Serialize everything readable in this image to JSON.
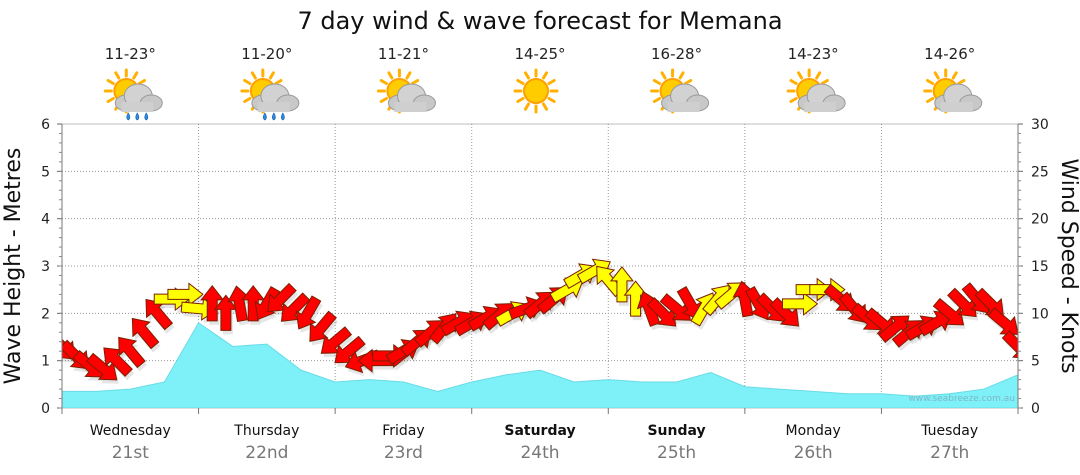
{
  "page": {
    "title": "7 day wind & wave forecast for Memana",
    "watermark": "www.seabreeze.com.au"
  },
  "chart_data": {
    "type": "area",
    "title": "7 day wind & wave forecast for Memana",
    "ylabel_left": "Wave Height - Metres",
    "ylabel_right": "Wind Speed - Knots",
    "left_axis": {
      "ticks": [
        "0",
        "1",
        "2",
        "3",
        "4",
        "5",
        "6"
      ],
      "range": [
        0,
        6
      ]
    },
    "right_axis": {
      "ticks": [
        "0",
        "5",
        "10",
        "15",
        "20",
        "25",
        "30"
      ],
      "range": [
        0,
        30
      ]
    },
    "days": [
      {
        "name": "Wednesday",
        "date": "21st",
        "temp": "11-23°",
        "weather": "partly-cloudy-showers-icon",
        "weekend": false
      },
      {
        "name": "Thursday",
        "date": "22nd",
        "temp": "11-20°",
        "weather": "partly-cloudy-showers-icon",
        "weekend": false
      },
      {
        "name": "Friday",
        "date": "23rd",
        "temp": "11-21°",
        "weather": "partly-cloudy-icon",
        "weekend": false
      },
      {
        "name": "Saturday",
        "date": "24th",
        "temp": "14-25°",
        "weather": "sunny-icon",
        "weekend": true
      },
      {
        "name": "Sunday",
        "date": "25th",
        "temp": "16-28°",
        "weather": "partly-cloudy-icon",
        "weekend": true
      },
      {
        "name": "Monday",
        "date": "26th",
        "temp": "14-23°",
        "weather": "partly-cloudy-icon",
        "weekend": false
      },
      {
        "name": "Tuesday",
        "date": "27th",
        "temp": "14-26°",
        "weather": "partly-cloudy-icon",
        "weekend": false
      }
    ],
    "wave_series": {
      "name": "Wave Height",
      "color": "#7ef0f8",
      "x_day": [
        0,
        0.25,
        0.5,
        0.75,
        1,
        1.25,
        1.5,
        1.75,
        2,
        2.25,
        2.5,
        2.75,
        3,
        3.25,
        3.5,
        3.75,
        4,
        4.25,
        4.5,
        4.75,
        5,
        5.25,
        5.5,
        5.75,
        6,
        6.25,
        6.5,
        6.75,
        7
      ],
      "values": [
        0.35,
        0.35,
        0.4,
        0.55,
        1.8,
        1.3,
        1.35,
        0.8,
        0.55,
        0.6,
        0.55,
        0.35,
        0.55,
        0.7,
        0.8,
        0.55,
        0.6,
        0.55,
        0.55,
        0.75,
        0.45,
        0.4,
        0.35,
        0.3,
        0.3,
        0.25,
        0.3,
        0.4,
        0.7
      ]
    },
    "wind_series": {
      "name": "Wind Speed",
      "x_day": [
        0,
        0.1,
        0.2,
        0.3,
        0.4,
        0.5,
        0.6,
        0.7,
        0.8,
        0.9,
        1,
        1.1,
        1.2,
        1.3,
        1.4,
        1.5,
        1.6,
        1.7,
        1.8,
        1.9,
        2,
        2.1,
        2.2,
        2.3,
        2.4,
        2.5,
        2.6,
        2.7,
        2.8,
        2.9,
        3,
        3.1,
        3.2,
        3.3,
        3.4,
        3.5,
        3.6,
        3.7,
        3.8,
        3.9,
        4,
        4.1,
        4.2,
        4.3,
        4.4,
        4.5,
        4.6,
        4.7,
        4.8,
        4.9,
        5,
        5.1,
        5.2,
        5.3,
        5.4,
        5.5,
        5.6,
        5.7,
        5.8,
        5.9,
        6,
        6.1,
        6.2,
        6.3,
        6.4,
        6.5,
        6.6,
        6.7,
        6.8,
        6.9,
        7
      ],
      "knots": [
        6.5,
        5.5,
        4.5,
        4.2,
        5,
        6,
        8,
        10,
        11.5,
        12,
        10.5,
        11,
        10,
        11,
        11,
        11,
        11.5,
        10.5,
        10,
        8.5,
        7,
        6,
        5,
        5,
        5.5,
        6,
        7,
        8,
        8.5,
        9,
        9,
        9.5,
        9.8,
        10,
        10.5,
        11,
        11.5,
        12.5,
        14,
        14.5,
        13.5,
        13,
        11.5,
        10.5,
        10,
        10.5,
        11,
        10.5,
        11.5,
        12,
        11.5,
        11,
        10.5,
        10,
        11,
        12.5,
        12.5,
        11.5,
        10.5,
        9.5,
        9,
        8.5,
        8,
        8.5,
        9,
        10,
        11,
        11.5,
        11,
        9,
        6.5
      ],
      "angles": [
        45,
        45,
        40,
        40,
        225,
        230,
        230,
        230,
        0,
        0,
        5,
        270,
        270,
        260,
        270,
        120,
        135,
        135,
        120,
        130,
        140,
        140,
        160,
        180,
        0,
        330,
        320,
        320,
        310,
        330,
        330,
        330,
        320,
        330,
        340,
        320,
        320,
        330,
        330,
        330,
        230,
        270,
        270,
        250,
        45,
        40,
        60,
        300,
        310,
        320,
        260,
        60,
        45,
        45,
        0,
        0,
        0,
        40,
        50,
        40,
        40,
        320,
        320,
        330,
        330,
        40,
        45,
        50,
        45,
        40,
        45
      ],
      "light_threshold_knots": 12,
      "strong_color": "#ff0000",
      "light_color": "#ffff00",
      "light_indices": [
        8,
        9,
        10,
        33,
        37,
        38,
        39,
        40,
        41,
        42,
        47,
        48,
        49,
        54,
        55,
        56
      ]
    }
  }
}
